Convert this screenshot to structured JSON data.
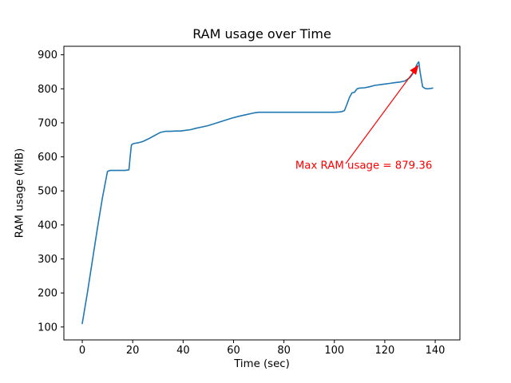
{
  "chart_data": {
    "type": "line",
    "title": "RAM usage over Time",
    "xlabel": "Time (sec)",
    "ylabel": "RAM usage (MiB)",
    "xlim": [
      -7.3,
      149.8
    ],
    "ylim": [
      62,
      925
    ],
    "x_ticks": [
      0,
      20,
      40,
      60,
      80,
      100,
      120,
      140
    ],
    "y_ticks": [
      100,
      200,
      300,
      400,
      500,
      600,
      700,
      800,
      900
    ],
    "grid": false,
    "legend": "none",
    "line_color": "#1f77b4",
    "series": [
      {
        "name": "RAM usage",
        "x": [
          0,
          2,
          4,
          6,
          8,
          10,
          11,
          13,
          15,
          17,
          18.5,
          19,
          19.5,
          20,
          21,
          22,
          24,
          26,
          28,
          30,
          31,
          33,
          35,
          37,
          39,
          41,
          43,
          45,
          47,
          50,
          53,
          56,
          59,
          62,
          65,
          68,
          70,
          75,
          80,
          85,
          90,
          95,
          100,
          102,
          103,
          104,
          105,
          106,
          107,
          108,
          108.5,
          109,
          110,
          112,
          114,
          116,
          118,
          120,
          122,
          124,
          126,
          128,
          130,
          131,
          132,
          133,
          133.5,
          134,
          135,
          136,
          137,
          138,
          139
        ],
        "y": [
          110,
          200,
          295,
          390,
          480,
          557,
          560,
          560,
          560,
          560,
          562,
          600,
          635,
          638,
          640,
          641,
          645,
          652,
          660,
          668,
          672,
          675,
          675,
          676,
          676,
          678,
          680,
          684,
          687,
          692,
          699,
          706,
          713,
          719,
          724,
          729,
          731,
          731,
          731,
          731,
          731,
          731,
          731,
          732,
          733,
          736,
          755,
          775,
          788,
          790,
          795,
          800,
          802,
          803,
          806,
          810,
          812,
          814,
          816,
          818,
          820,
          823,
          833,
          843,
          860,
          875,
          879.36,
          850,
          806,
          801,
          800,
          801,
          802
        ]
      }
    ],
    "annotation": {
      "text": "Max RAM usage = 879.36",
      "color": "#ff0000",
      "text_xy": [
        84.5,
        565
      ],
      "arrow_start": [
        104.5,
        580
      ],
      "arrow_end": [
        133.2,
        868
      ]
    },
    "max_value": 879.36
  }
}
